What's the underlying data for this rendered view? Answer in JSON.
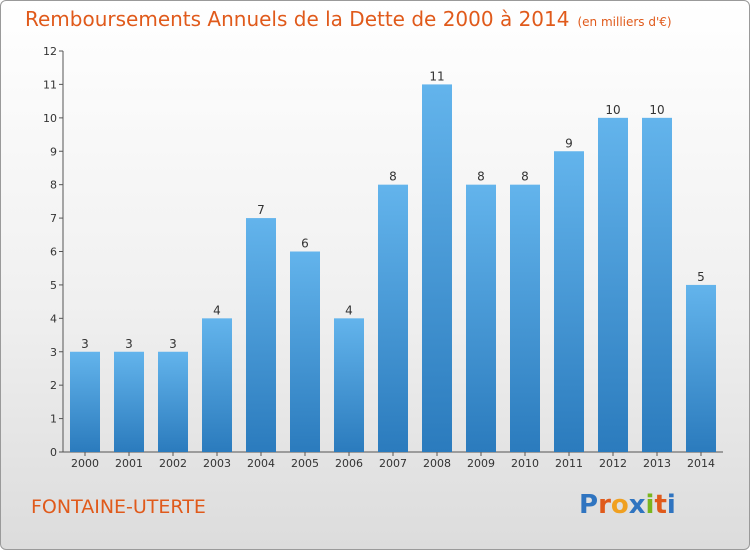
{
  "title": "Remboursements Annuels de la Dette de 2000 à 2014",
  "unit": "(en milliers d'€)",
  "city": "FONTAINE-UTERTE",
  "brand": "Proxiti",
  "colors": {
    "title": "#e05a1b",
    "bar_top": "#63b4ec",
    "bar_bottom": "#2b7bbd",
    "brand": [
      "#2f74c0",
      "#e05a1b",
      "#f0a020",
      "#2f74c0",
      "#7ab51d",
      "#e05a1b",
      "#2f74c0"
    ]
  },
  "chart_data": {
    "type": "bar",
    "title": "Remboursements Annuels de la Dette de 2000 à 2014",
    "categories": [
      "2000",
      "2001",
      "2002",
      "2003",
      "2004",
      "2005",
      "2006",
      "2007",
      "2008",
      "2009",
      "2010",
      "2011",
      "2012",
      "2013",
      "2014"
    ],
    "values": [
      3,
      3,
      3,
      4,
      7,
      6,
      4,
      8,
      11,
      8,
      8,
      9,
      10,
      10,
      5
    ],
    "ylim": [
      0,
      12
    ],
    "yticks": [
      0,
      1,
      2,
      3,
      4,
      5,
      6,
      7,
      8,
      9,
      10,
      11,
      12
    ],
    "xlabel": "",
    "ylabel": "",
    "grid": false,
    "data_labels": true
  }
}
